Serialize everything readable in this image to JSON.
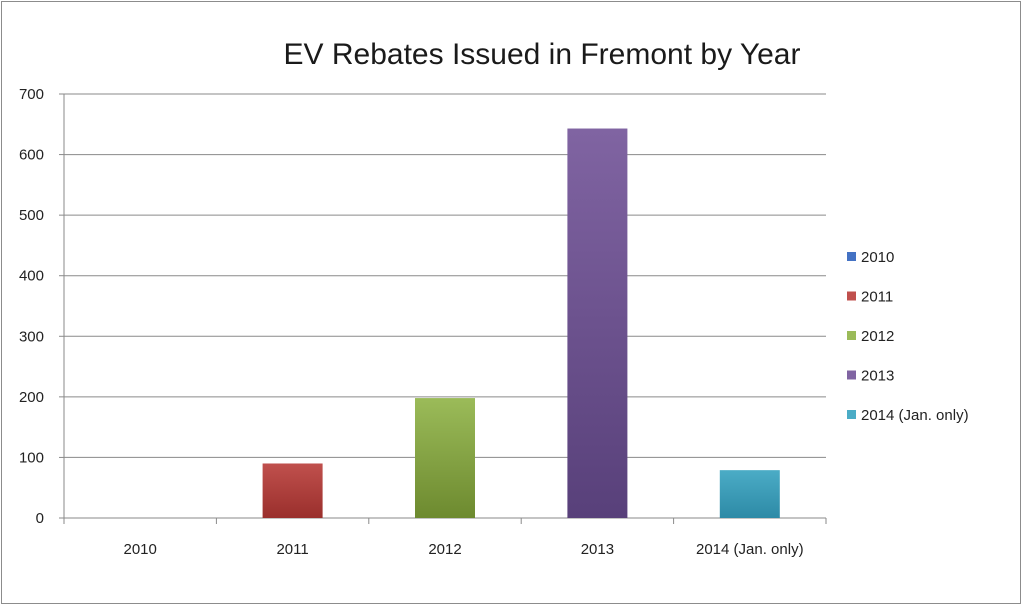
{
  "chart_data": {
    "type": "bar",
    "title": "EV Rebates Issued in Fremont by Year",
    "xlabel": "",
    "ylabel": "",
    "categories": [
      "2010",
      "2011",
      "2012",
      "2013",
      "2014 (Jan. only)"
    ],
    "values": [
      0,
      90,
      198,
      643,
      79
    ],
    "ylim": [
      0,
      700
    ],
    "yticks": [
      0,
      100,
      200,
      300,
      400,
      500,
      600,
      700
    ],
    "grid": true,
    "legend_position": "right",
    "legend": [
      "2010",
      "2011",
      "2012",
      "2013",
      "2014 (Jan. only)"
    ],
    "colors": [
      "#4472c4",
      "#c0504d",
      "#9bbb59",
      "#8064a2",
      "#4bacc6"
    ],
    "colors_dark": [
      "#2f4f8a",
      "#9a2f2c",
      "#6d8a2f",
      "#58407a",
      "#2d8aa6"
    ]
  }
}
